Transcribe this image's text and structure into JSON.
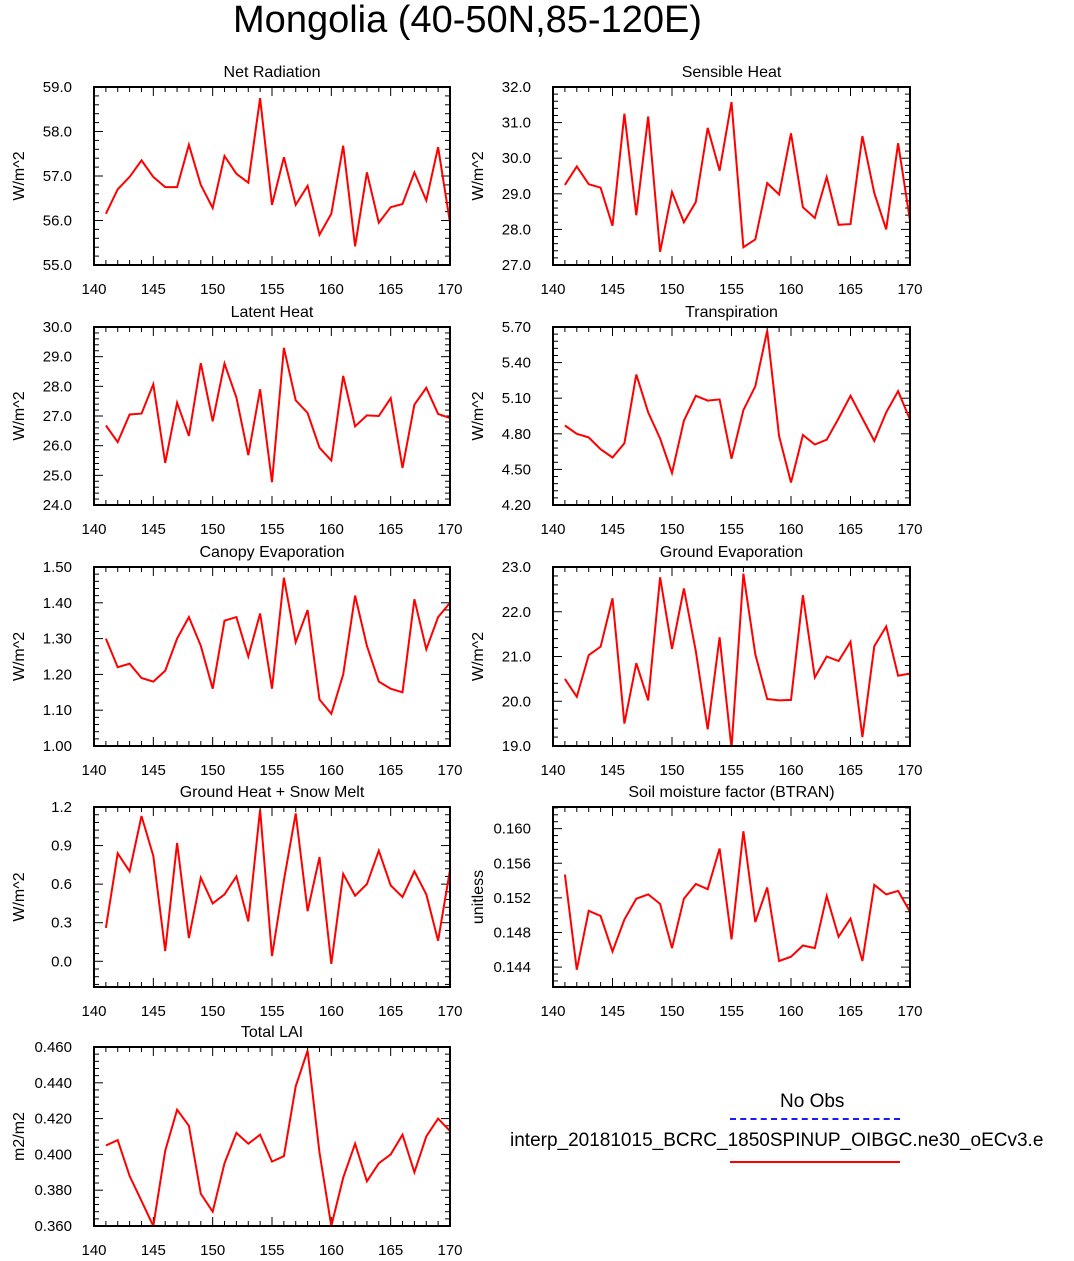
{
  "figure_title": "Mongolia (40-50N,85-120E)",
  "legend": {
    "obs_label": "No Obs",
    "model_label": "interp_20181015_BCRC_1850SPINUP_OIBGC.ne30_oECv3.e",
    "obs_color": "#1a1aff",
    "model_color": "#ff0000"
  },
  "chart_data": [
    {
      "type": "line",
      "title": "Net Radiation",
      "xlabel": "",
      "ylabel": "W/m^2",
      "xlim": [
        140,
        170
      ],
      "ylim": [
        55.0,
        59.0
      ],
      "x_ticks": [
        "140",
        "145",
        "150",
        "155",
        "160",
        "165",
        "170"
      ],
      "y_ticks": [
        "55.0",
        "56.0",
        "57.0",
        "58.0",
        "59.0"
      ],
      "x": [
        141,
        142,
        143,
        144,
        145,
        146,
        147,
        148,
        149,
        150,
        151,
        152,
        153,
        154,
        155,
        156,
        157,
        158,
        159,
        160,
        161,
        162,
        163,
        164,
        165,
        166,
        167,
        168,
        169,
        170
      ],
      "series": [
        {
          "name": "model",
          "color": "#ff0000",
          "values": [
            56.15,
            56.7,
            56.98,
            57.35,
            56.98,
            56.75,
            56.75,
            57.7,
            56.8,
            56.28,
            57.45,
            57.05,
            56.85,
            58.75,
            56.35,
            57.42,
            56.35,
            56.78,
            55.68,
            56.15,
            57.68,
            55.42,
            57.08,
            55.95,
            56.3,
            56.37,
            57.08,
            56.45,
            57.65,
            55.95
          ]
        }
      ]
    },
    {
      "type": "line",
      "title": "Sensible Heat",
      "xlabel": "",
      "ylabel": "W/m^2",
      "xlim": [
        140,
        170
      ],
      "ylim": [
        27.0,
        32.0
      ],
      "x_ticks": [
        "140",
        "145",
        "150",
        "155",
        "160",
        "165",
        "170"
      ],
      "y_ticks": [
        "27.0",
        "28.0",
        "29.0",
        "30.0",
        "31.0",
        "32.0"
      ],
      "x": [
        141,
        142,
        143,
        144,
        145,
        146,
        147,
        148,
        149,
        150,
        151,
        152,
        153,
        154,
        155,
        156,
        157,
        158,
        159,
        160,
        161,
        162,
        163,
        164,
        165,
        166,
        167,
        168,
        169,
        170
      ],
      "series": [
        {
          "name": "model",
          "color": "#ff0000",
          "values": [
            29.25,
            29.77,
            29.27,
            29.17,
            28.1,
            31.25,
            28.4,
            31.17,
            27.37,
            29.05,
            28.2,
            28.77,
            30.85,
            29.65,
            31.58,
            27.5,
            27.72,
            29.3,
            28.98,
            30.7,
            28.62,
            28.32,
            29.47,
            28.13,
            28.15,
            30.62,
            29.02,
            28.0,
            30.42,
            28.25
          ]
        }
      ]
    },
    {
      "type": "line",
      "title": "Latent Heat",
      "xlabel": "",
      "ylabel": "W/m^2",
      "xlim": [
        140,
        170
      ],
      "ylim": [
        24.0,
        30.0
      ],
      "x_ticks": [
        "140",
        "145",
        "150",
        "155",
        "160",
        "165",
        "170"
      ],
      "y_ticks": [
        "24.0",
        "25.0",
        "26.0",
        "27.0",
        "28.0",
        "29.0",
        "30.0"
      ],
      "x": [
        141,
        142,
        143,
        144,
        145,
        146,
        147,
        148,
        149,
        150,
        151,
        152,
        153,
        154,
        155,
        156,
        157,
        158,
        159,
        160,
        161,
        162,
        163,
        164,
        165,
        166,
        167,
        168,
        169,
        170
      ],
      "series": [
        {
          "name": "model",
          "color": "#ff0000",
          "values": [
            26.68,
            26.12,
            27.05,
            27.08,
            28.07,
            25.42,
            27.45,
            26.33,
            28.78,
            26.82,
            28.77,
            27.62,
            25.68,
            27.9,
            24.77,
            29.3,
            27.53,
            27.1,
            25.93,
            25.5,
            28.35,
            26.65,
            27.02,
            27.0,
            27.6,
            25.25,
            27.38,
            27.95,
            27.07,
            26.93
          ]
        }
      ]
    },
    {
      "type": "line",
      "title": "Transpiration",
      "xlabel": "",
      "ylabel": "W/m^2",
      "xlim": [
        140,
        170
      ],
      "ylim": [
        4.2,
        5.7
      ],
      "x_ticks": [
        "140",
        "145",
        "150",
        "155",
        "160",
        "165",
        "170"
      ],
      "y_ticks": [
        "4.20",
        "4.50",
        "4.80",
        "5.10",
        "5.40",
        "5.70"
      ],
      "x": [
        141,
        142,
        143,
        144,
        145,
        146,
        147,
        148,
        149,
        150,
        151,
        152,
        153,
        154,
        155,
        156,
        157,
        158,
        159,
        160,
        161,
        162,
        163,
        164,
        165,
        166,
        167,
        168,
        169,
        170
      ],
      "series": [
        {
          "name": "model",
          "color": "#ff0000",
          "values": [
            4.87,
            4.8,
            4.77,
            4.67,
            4.6,
            4.72,
            5.3,
            4.98,
            4.76,
            4.47,
            4.91,
            5.12,
            5.08,
            5.09,
            4.59,
            5.0,
            5.2,
            5.67,
            4.78,
            4.39,
            4.79,
            4.71,
            4.75,
            4.93,
            5.12,
            4.93,
            4.74,
            4.98,
            5.16,
            4.92
          ]
        }
      ]
    },
    {
      "type": "line",
      "title": "Canopy Evaporation",
      "xlabel": "",
      "ylabel": "W/m^2",
      "xlim": [
        140,
        170
      ],
      "ylim": [
        1.0,
        1.5
      ],
      "x_ticks": [
        "140",
        "145",
        "150",
        "155",
        "160",
        "165",
        "170"
      ],
      "y_ticks": [
        "1.00",
        "1.10",
        "1.20",
        "1.30",
        "1.40",
        "1.50"
      ],
      "x": [
        141,
        142,
        143,
        144,
        145,
        146,
        147,
        148,
        149,
        150,
        151,
        152,
        153,
        154,
        155,
        156,
        157,
        158,
        159,
        160,
        161,
        162,
        163,
        164,
        165,
        166,
        167,
        168,
        169,
        170
      ],
      "series": [
        {
          "name": "model",
          "color": "#ff0000",
          "values": [
            1.3,
            1.22,
            1.23,
            1.19,
            1.18,
            1.21,
            1.3,
            1.36,
            1.28,
            1.16,
            1.35,
            1.36,
            1.25,
            1.37,
            1.16,
            1.47,
            1.29,
            1.38,
            1.13,
            1.09,
            1.2,
            1.42,
            1.28,
            1.18,
            1.16,
            1.15,
            1.41,
            1.27,
            1.36,
            1.4
          ]
        }
      ]
    },
    {
      "type": "line",
      "title": "Ground Evaporation",
      "xlabel": "",
      "ylabel": "W/m^2",
      "xlim": [
        140,
        170
      ],
      "ylim": [
        19.0,
        23.0
      ],
      "x_ticks": [
        "140",
        "145",
        "150",
        "155",
        "160",
        "165",
        "170"
      ],
      "y_ticks": [
        "19.0",
        "20.0",
        "21.0",
        "22.0",
        "23.0"
      ],
      "x": [
        141,
        142,
        143,
        144,
        145,
        146,
        147,
        148,
        149,
        150,
        151,
        152,
        153,
        154,
        155,
        156,
        157,
        158,
        159,
        160,
        161,
        162,
        163,
        164,
        165,
        166,
        167,
        168,
        169,
        170
      ],
      "series": [
        {
          "name": "model",
          "color": "#ff0000",
          "values": [
            20.5,
            20.1,
            21.03,
            21.22,
            22.3,
            19.5,
            20.85,
            20.02,
            22.77,
            21.17,
            22.52,
            21.12,
            19.37,
            21.43,
            18.95,
            22.85,
            21.05,
            20.05,
            20.02,
            20.03,
            22.37,
            20.53,
            21.0,
            20.9,
            21.33,
            19.2,
            21.23,
            21.67,
            20.57,
            20.62
          ]
        }
      ]
    },
    {
      "type": "line",
      "title": "Ground Heat + Snow Melt",
      "xlabel": "",
      "ylabel": "W/m^2",
      "xlim": [
        140,
        170
      ],
      "ylim": [
        -0.2,
        1.2
      ],
      "x_ticks": [
        "140",
        "145",
        "150",
        "155",
        "160",
        "165",
        "170"
      ],
      "y_ticks": [
        "0.0",
        "0.3",
        "0.6",
        "0.9",
        "1.2"
      ],
      "x": [
        141,
        142,
        143,
        144,
        145,
        146,
        147,
        148,
        149,
        150,
        151,
        152,
        153,
        154,
        155,
        156,
        157,
        158,
        159,
        160,
        161,
        162,
        163,
        164,
        165,
        166,
        167,
        168,
        169,
        170
      ],
      "series": [
        {
          "name": "model",
          "color": "#ff0000",
          "values": [
            0.26,
            0.84,
            0.7,
            1.13,
            0.82,
            0.08,
            0.92,
            0.18,
            0.65,
            0.45,
            0.52,
            0.66,
            0.31,
            1.18,
            0.04,
            0.63,
            1.15,
            0.39,
            0.81,
            -0.02,
            0.68,
            0.51,
            0.6,
            0.86,
            0.59,
            0.5,
            0.7,
            0.52,
            0.16,
            0.71
          ]
        }
      ]
    },
    {
      "type": "line",
      "title": "Soil moisture factor (BTRAN)",
      "xlabel": "",
      "ylabel": "unitless",
      "xlim": [
        140,
        170
      ],
      "ylim": [
        0.1417,
        0.1625
      ],
      "x_ticks": [
        "140",
        "145",
        "150",
        "155",
        "160",
        "165",
        "170"
      ],
      "y_ticks": [
        "0.144",
        "0.148",
        "0.152",
        "0.156",
        "0.160"
      ],
      "x": [
        141,
        142,
        143,
        144,
        145,
        146,
        147,
        148,
        149,
        150,
        151,
        152,
        153,
        154,
        155,
        156,
        157,
        158,
        159,
        160,
        161,
        162,
        163,
        164,
        165,
        166,
        167,
        168,
        169,
        170
      ],
      "series": [
        {
          "name": "model",
          "color": "#ff0000",
          "values": [
            0.1547,
            0.1437,
            0.1505,
            0.1499,
            0.1458,
            0.1495,
            0.1519,
            0.1524,
            0.1513,
            0.1462,
            0.1519,
            0.1536,
            0.153,
            0.1577,
            0.1472,
            0.1597,
            0.1492,
            0.1532,
            0.1447,
            0.1452,
            0.1465,
            0.1462,
            0.1522,
            0.1475,
            0.1496,
            0.1447,
            0.1535,
            0.1524,
            0.1528,
            0.1504
          ]
        }
      ]
    },
    {
      "type": "line",
      "title": "Total LAI",
      "xlabel": "",
      "ylabel": "m2/m2",
      "xlim": [
        140,
        170
      ],
      "ylim": [
        0.36,
        0.46
      ],
      "x_ticks": [
        "140",
        "145",
        "150",
        "155",
        "160",
        "165",
        "170"
      ],
      "y_ticks": [
        "0.360",
        "0.380",
        "0.400",
        "0.420",
        "0.440",
        "0.460"
      ],
      "x": [
        141,
        142,
        143,
        144,
        145,
        146,
        147,
        148,
        149,
        150,
        151,
        152,
        153,
        154,
        155,
        156,
        157,
        158,
        159,
        160,
        161,
        162,
        163,
        164,
        165,
        166,
        167,
        168,
        169,
        170
      ],
      "series": [
        {
          "name": "model",
          "color": "#ff0000",
          "values": [
            0.405,
            0.408,
            0.388,
            0.374,
            0.36,
            0.402,
            0.425,
            0.416,
            0.378,
            0.368,
            0.395,
            0.412,
            0.406,
            0.411,
            0.396,
            0.399,
            0.438,
            0.458,
            0.401,
            0.36,
            0.387,
            0.406,
            0.385,
            0.395,
            0.4,
            0.411,
            0.39,
            0.41,
            0.42,
            0.413
          ]
        }
      ]
    }
  ]
}
